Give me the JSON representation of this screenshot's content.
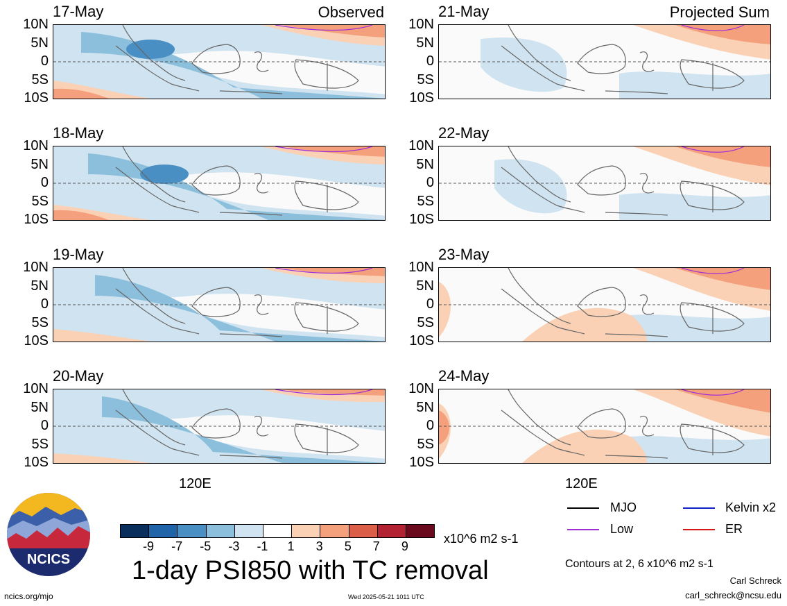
{
  "panels": {
    "left": [
      {
        "date": "17-May",
        "title": "Observed"
      },
      {
        "date": "18-May",
        "title": ""
      },
      {
        "date": "19-May",
        "title": ""
      },
      {
        "date": "20-May",
        "title": ""
      }
    ],
    "right": [
      {
        "date": "21-May",
        "title": "Projected Sum"
      },
      {
        "date": "22-May",
        "title": ""
      },
      {
        "date": "23-May",
        "title": ""
      },
      {
        "date": "24-May",
        "title": ""
      }
    ]
  },
  "axes": {
    "lat_ticks": [
      "10N",
      "5N",
      "0",
      "5S",
      "10S"
    ],
    "lon_tick": "120E"
  },
  "colorbar": {
    "labels": [
      "-9",
      "-7",
      "-5",
      "-3",
      "-1",
      "1",
      "3",
      "5",
      "7",
      "9"
    ],
    "units": "x10^6 m2 s-1",
    "colors": [
      "#0b2f5c",
      "#1f64a8",
      "#4a8fc4",
      "#8cbfdc",
      "#cfe3f0",
      "#ffffff",
      "#fbd1b5",
      "#f4a07c",
      "#db5e48",
      "#b22233",
      "#6b0a1e"
    ]
  },
  "legend": {
    "mjo": "MJO",
    "low": "Low",
    "kelvin": "Kelvin x2",
    "er": "ER",
    "colors": {
      "mjo": "#000000",
      "low": "#a02fd6",
      "kelvin": "#1020c8",
      "er": "#d81818"
    }
  },
  "footer": {
    "main_title": "1-day PSI850 with TC removal",
    "contour_note": "Contours at 2, 6 x10^6 m2 s-1",
    "author": "Carl Schreck",
    "email": "carl_schreck@ncsu.edu",
    "url": "ncics.org/mjo",
    "timestamp": "Wed 2025-05-21 1011 UTC",
    "logo_text": "NCICS"
  }
}
